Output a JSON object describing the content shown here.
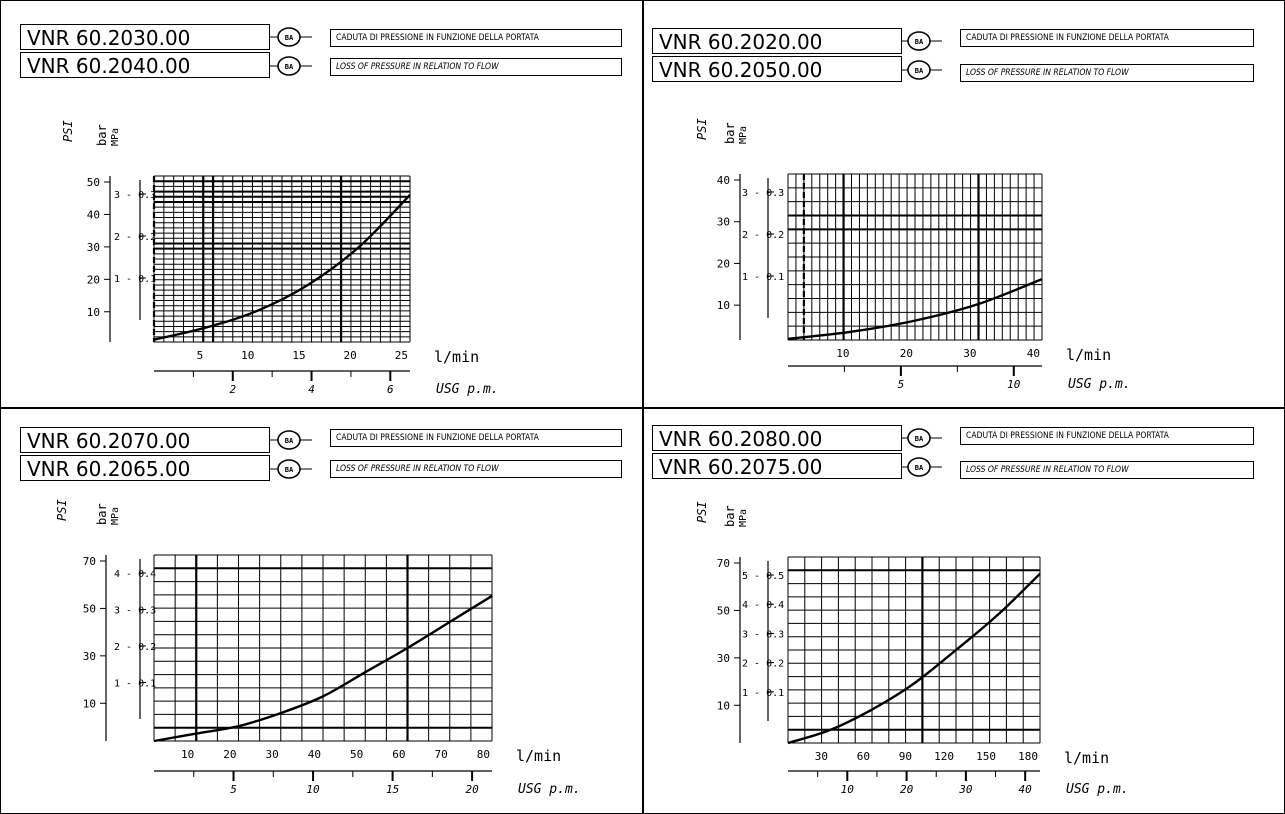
{
  "caption_it": "CADUTA DI PRESSIONE IN FUNZIONE DELLA PORTATA",
  "caption_en": "LOSS OF PRESSURE IN RELATION TO FLOW",
  "logo_text": "BA",
  "units": {
    "psi": "PSI",
    "bar": "bar",
    "mpa": "MPa",
    "lmin": "l/min",
    "usg": "USG p.m."
  },
  "chart_data": [
    {
      "type": "line",
      "models": [
        "VNR 60.2030.00",
        "VNR 60.2040.00"
      ],
      "xlabel": "l/min",
      "x2label": "USG p.m.",
      "ylabel": "PSI",
      "y2label": "bar - MPa",
      "xlim": [
        0,
        25
      ],
      "ylim": [
        0,
        3.5
      ],
      "x_ticks": [
        "5",
        "10",
        "15",
        "20",
        "25"
      ],
      "usg_ticks": [
        "2",
        "4",
        "6"
      ],
      "psi_ticks": [
        "50",
        "40",
        "30",
        "20",
        "10"
      ],
      "bar_ticks": [
        "3 - 0.3",
        "2 - 0.2",
        "1 - 0.1"
      ],
      "x": [
        0,
        5,
        10,
        15,
        20,
        25
      ],
      "y": [
        0.05,
        0.3,
        0.65,
        1.2,
        2.0,
        3.1
      ],
      "grid": true
    },
    {
      "type": "line",
      "models": [
        "VNR 60.2020.00",
        "VNR 60.2050.00"
      ],
      "xlabel": "l/min",
      "x2label": "USG p.m.",
      "ylabel": "PSI",
      "y2label": "bar - MPa",
      "xlim": [
        0,
        40
      ],
      "ylim": [
        0,
        3
      ],
      "x_ticks": [
        "10",
        "20",
        "30",
        "40"
      ],
      "usg_ticks": [
        "5",
        "10"
      ],
      "psi_ticks": [
        "40",
        "30",
        "20",
        "10"
      ],
      "bar_ticks": [
        "3 - 0.3",
        "2 - 0.2",
        "1 - 0.1"
      ],
      "x": [
        0,
        10,
        20,
        30,
        40
      ],
      "y": [
        0.02,
        0.15,
        0.35,
        0.65,
        1.1
      ],
      "grid": true
    },
    {
      "type": "line",
      "models": [
        "VNR 60.2070.00",
        "VNR 60.2065.00"
      ],
      "xlabel": "l/min",
      "x2label": "USG p.m.",
      "ylabel": "PSI",
      "y2label": "bar - MPa",
      "xlim": [
        0,
        80
      ],
      "ylim": [
        0,
        5
      ],
      "x_ticks": [
        "10",
        "20",
        "30",
        "40",
        "50",
        "60",
        "70",
        "80"
      ],
      "usg_ticks": [
        "5",
        "10",
        "15",
        "20"
      ],
      "psi_ticks": [
        "70",
        "50",
        "30",
        "10"
      ],
      "bar_ticks": [
        "4 - 0.4",
        "3 - 0.3",
        "2 - 0.2",
        "1 - 0.1"
      ],
      "x": [
        0,
        10,
        20,
        30,
        40,
        50,
        60,
        70,
        80
      ],
      "y": [
        0.0,
        0.2,
        0.4,
        0.75,
        1.2,
        1.85,
        2.5,
        3.2,
        3.9
      ],
      "grid": true
    },
    {
      "type": "line",
      "models": [
        "VNR 60.2080.00",
        "VNR 60.2075.00"
      ],
      "xlabel": "l/min",
      "x2label": "USG p.m.",
      "ylabel": "PSI",
      "y2label": "bar - MPa",
      "xlim": [
        0,
        180
      ],
      "ylim": [
        0,
        5
      ],
      "x_ticks": [
        "30",
        "60",
        "90",
        "120",
        "150",
        "180"
      ],
      "usg_ticks": [
        "10",
        "20",
        "30",
        "40"
      ],
      "psi_ticks": [
        "70",
        "50",
        "30",
        "10"
      ],
      "bar_ticks": [
        "5 - 0.5",
        "4 - 0.4",
        "3 - 0.3",
        "2 - 0.2",
        "1 - 0.1"
      ],
      "x": [
        0,
        30,
        60,
        90,
        120,
        150,
        180
      ],
      "y": [
        0.0,
        0.35,
        0.9,
        1.6,
        2.5,
        3.45,
        4.55
      ],
      "grid": true
    }
  ]
}
